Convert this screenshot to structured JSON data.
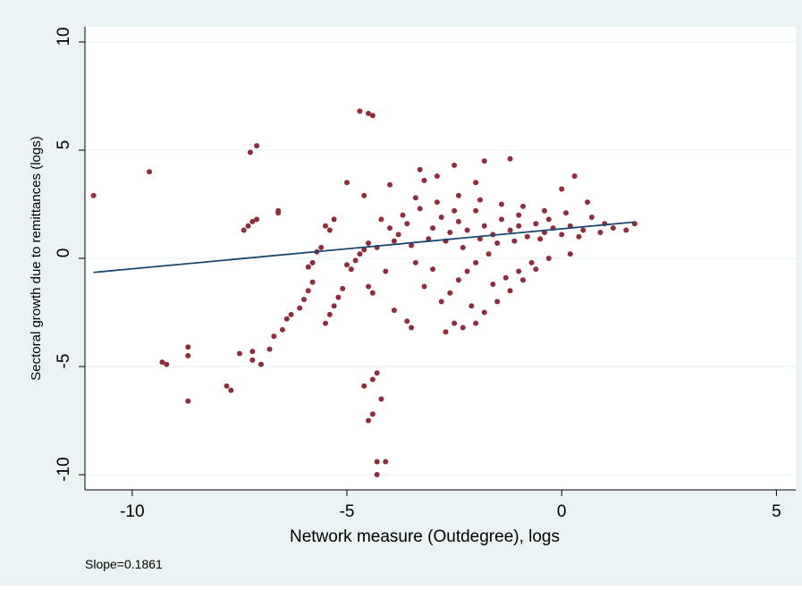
{
  "chart_data": {
    "type": "scatter",
    "y_label": "Sectoral growth due to remittances (logs)",
    "x_label": "Network measure (Outdegree), logs",
    "annotation": "Slope=0.1861",
    "xlim": [
      -11.1,
      5.45
    ],
    "ylim": [
      -10.7,
      10.7
    ],
    "xticks": [
      -10,
      -5,
      0,
      5
    ],
    "yticks": [
      -10,
      -5,
      0,
      5,
      10
    ],
    "grid": true,
    "color": "#8f2d3b",
    "x": [
      -10.9,
      -9.6,
      -9.3,
      -9.2,
      -8.7,
      -8.7,
      -8.7,
      -7.8,
      -7.7,
      -7.5,
      -7.4,
      -7.3,
      -7.2,
      -7.1,
      -7.25,
      -7.1,
      -6.6,
      -6.6,
      -7.2,
      -7.2,
      -7.0,
      -6.8,
      -6.7,
      -6.5,
      -6.4,
      -6.3,
      -6.1,
      -6.0,
      -5.9,
      -5.8,
      -5.9,
      -5.8,
      -5.7,
      -5.6,
      -5.5,
      -5.4,
      -5.3,
      -5.2,
      -5.1,
      -5.4,
      -5.3,
      -5.5,
      -5.0,
      -4.9,
      -5.0,
      -4.8,
      -4.7,
      -4.6,
      -4.5,
      -4.7,
      -4.5,
      -4.4,
      -4.6,
      -4.4,
      -4.3,
      -4.5,
      -4.4,
      -4.3,
      -4.3,
      -4.1,
      -4.2,
      -4.6,
      -4.5,
      -4.4,
      -4.0,
      -3.9,
      -3.6,
      -3.5,
      -3.3,
      -3.2,
      -2.9,
      -2.5,
      -2.0,
      -1.8,
      -1.2,
      -2.7,
      -2.5,
      -2.3,
      -2.0,
      -1.8,
      -1.5,
      -1.2,
      -0.9,
      -0.6,
      -0.3,
      -2.8,
      -2.6,
      -2.4,
      -2.2,
      -2.0,
      -1.7,
      -3.2,
      -3.0,
      -1.0,
      -0.7,
      0.0,
      0.3,
      0.6,
      0.5,
      0.9,
      1.2,
      1.5,
      1.7,
      0.2,
      -3.8,
      -3.6,
      -3.3,
      -3.0,
      -2.8,
      -2.6,
      -2.4,
      -2.2,
      -2.0,
      -1.8,
      -1.6,
      -1.4,
      -1.2,
      -1.0,
      -0.8,
      -0.6,
      -0.4,
      -0.2,
      0.0,
      0.2,
      0.4,
      -3.5,
      -3.1,
      -2.7,
      -2.3,
      -1.9,
      -1.5,
      -1.1,
      -0.5,
      -3.4,
      -2.9,
      -2.4,
      -1.9,
      -1.4,
      -0.9,
      -0.4,
      0.1,
      -4.2,
      -4.0,
      -3.9,
      -4.3,
      -4.1,
      -3.4,
      -1.6,
      -1.3,
      -2.1,
      -1.0,
      -0.3,
      0.7,
      1.0,
      -2.5,
      -3.7
    ],
    "values": [
      2.9,
      4.0,
      -4.8,
      -4.9,
      -4.1,
      -4.5,
      -6.6,
      -5.9,
      -6.1,
      -4.4,
      1.3,
      1.5,
      1.7,
      1.8,
      4.9,
      5.2,
      2.2,
      2.1,
      -4.3,
      -4.7,
      -4.9,
      -4.2,
      -3.6,
      -3.3,
      -2.8,
      -2.6,
      -2.3,
      -1.9,
      -1.5,
      -1.1,
      -0.4,
      -0.2,
      0.3,
      0.5,
      -3.0,
      -2.6,
      -2.2,
      -1.8,
      -1.4,
      1.3,
      1.8,
      1.5,
      3.5,
      -0.5,
      -0.3,
      -0.1,
      0.2,
      0.4,
      0.7,
      6.8,
      6.7,
      6.6,
      -5.9,
      -5.6,
      -5.3,
      -7.5,
      -7.2,
      -9.4,
      -10.0,
      -9.4,
      -6.5,
      2.9,
      -1.3,
      -1.6,
      3.4,
      -2.4,
      -2.9,
      -3.2,
      4.1,
      3.6,
      3.8,
      4.3,
      3.5,
      4.5,
      4.6,
      -3.4,
      -3.0,
      -3.2,
      -3.0,
      -2.5,
      -2.0,
      -1.5,
      -1.0,
      -0.5,
      0.0,
      -2.0,
      -1.6,
      -1.0,
      -0.6,
      -0.2,
      0.2,
      -1.3,
      -0.5,
      -0.6,
      -0.2,
      3.2,
      3.8,
      2.6,
      1.3,
      1.2,
      1.4,
      1.3,
      1.6,
      0.2,
      1.1,
      1.6,
      2.3,
      1.4,
      1.9,
      1.2,
      1.7,
      1.3,
      2.2,
      1.5,
      1.1,
      1.8,
      1.3,
      1.5,
      1.0,
      1.6,
      1.2,
      1.4,
      1.1,
      1.5,
      1.0,
      0.6,
      0.9,
      0.8,
      0.5,
      0.9,
      0.7,
      0.8,
      0.9,
      2.8,
      2.6,
      2.9,
      2.7,
      2.5,
      2.4,
      2.2,
      2.1,
      1.8,
      1.4,
      0.8,
      0.5,
      -0.6,
      -0.2,
      -1.2,
      -0.9,
      -2.2,
      2.0,
      1.8,
      1.9,
      1.6,
      2.2,
      2.0
    ],
    "fit_line": {
      "color": "#1a476f",
      "x": [
        -10.9,
        1.7
      ],
      "y": [
        -0.65,
        1.68
      ]
    }
  }
}
